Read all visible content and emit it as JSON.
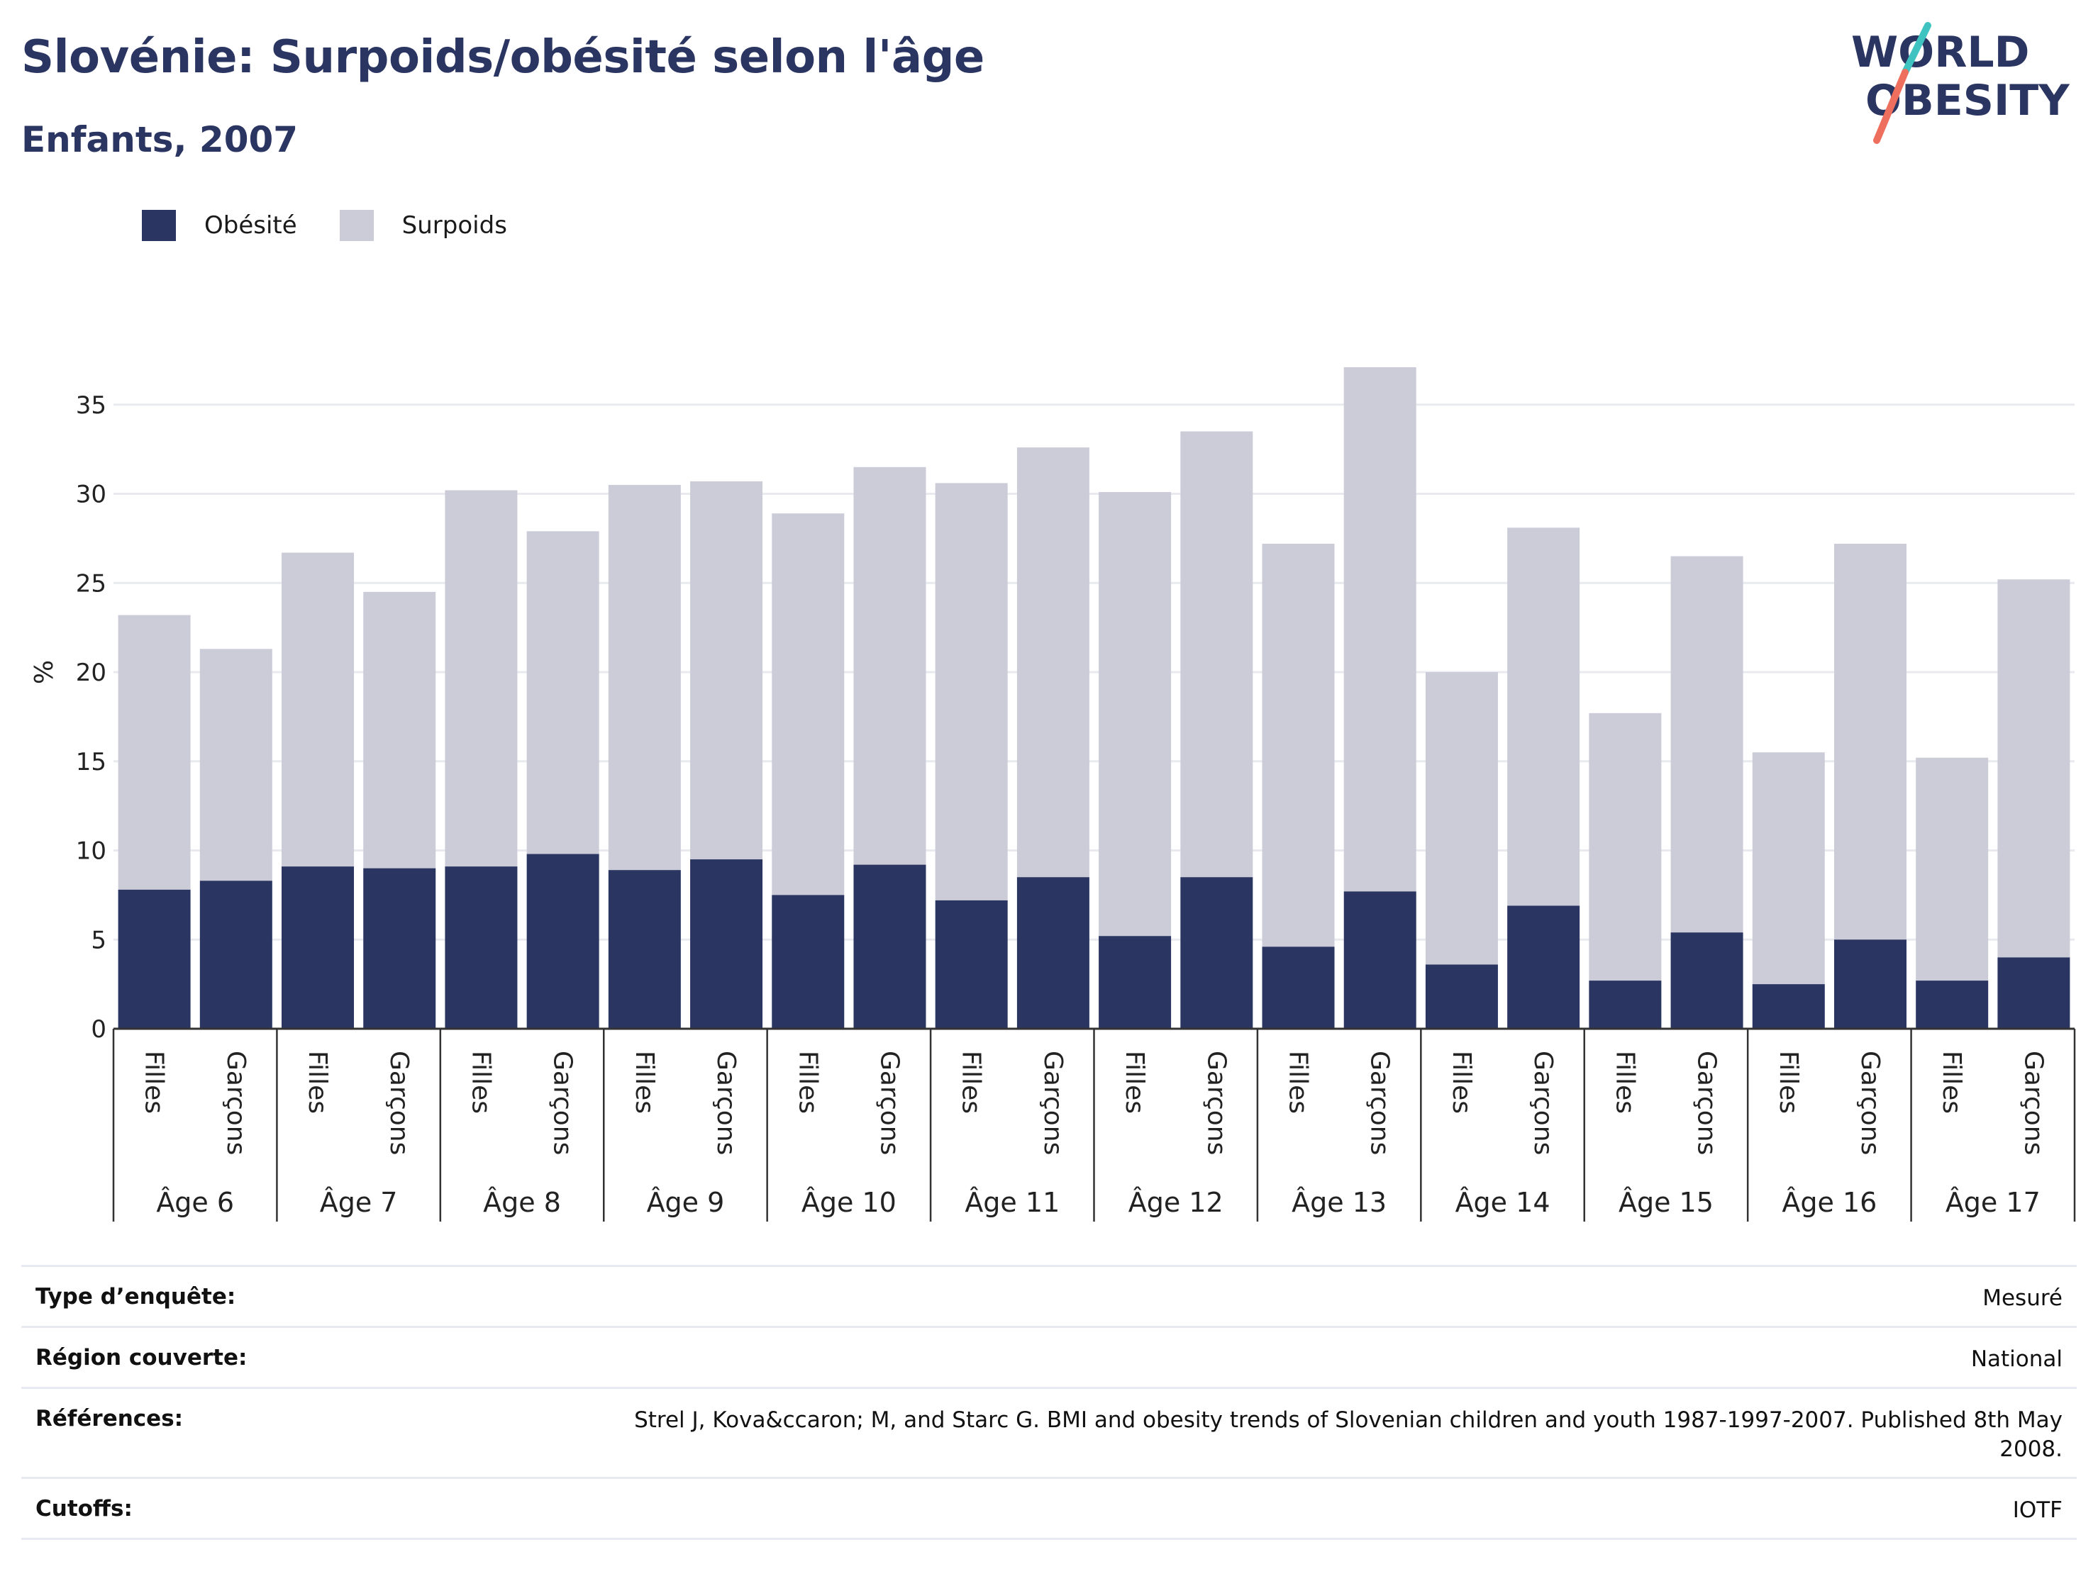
{
  "header": {
    "title": "Slovénie: Surpoids/obésité selon l'âge",
    "subtitle": "Enfants, 2007"
  },
  "logo": {
    "line1": "WORLD",
    "line2": "OBESITY"
  },
  "colors": {
    "obesity": "#2b3561",
    "overweight": "#cbccd7",
    "grid": "#e9eaef",
    "axis": "#333333"
  },
  "chart_data": {
    "type": "bar",
    "stacked": true,
    "ylabel": "%",
    "xlabel": "",
    "ylim": [
      0,
      38
    ],
    "yticks": [
      0,
      5,
      10,
      15,
      20,
      25,
      30,
      35
    ],
    "grid": true,
    "legend_position": "top-left",
    "groups": [
      "Âge 6",
      "Âge 7",
      "Âge 8",
      "Âge 9",
      "Âge 10",
      "Âge 11",
      "Âge 12",
      "Âge 13",
      "Âge 14",
      "Âge 15",
      "Âge 16",
      "Âge 17"
    ],
    "subcategories": [
      "Filles",
      "Garçons"
    ],
    "series": [
      {
        "name": "Obésité",
        "color": "#2b3561",
        "values": [
          7.8,
          8.3,
          9.1,
          9.0,
          9.1,
          9.8,
          8.9,
          9.5,
          7.5,
          9.2,
          7.2,
          8.5,
          5.2,
          8.5,
          4.6,
          7.7,
          3.6,
          6.9,
          2.7,
          5.4,
          2.5,
          5.0,
          2.7,
          4.0
        ]
      },
      {
        "name": "Surpoids",
        "color": "#cbccd7",
        "values": [
          15.4,
          13.0,
          17.6,
          15.5,
          21.1,
          18.1,
          21.6,
          21.2,
          21.4,
          22.3,
          23.4,
          24.1,
          24.9,
          25.0,
          22.6,
          29.4,
          16.4,
          21.2,
          15.0,
          21.1,
          13.0,
          22.2,
          12.5,
          21.2
        ]
      }
    ]
  },
  "info": [
    {
      "label": "Type d’enquête:",
      "value": "Mesuré"
    },
    {
      "label": "Région couverte:",
      "value": "National"
    },
    {
      "label": "Références:",
      "value": "Strel J, Kova&ccaron; M, and Starc G. BMI and obesity trends of Slovenian children and youth 1987-1997-2007. Published 8th May 2008."
    },
    {
      "label": "Cutoffs:",
      "value": "IOTF"
    }
  ]
}
